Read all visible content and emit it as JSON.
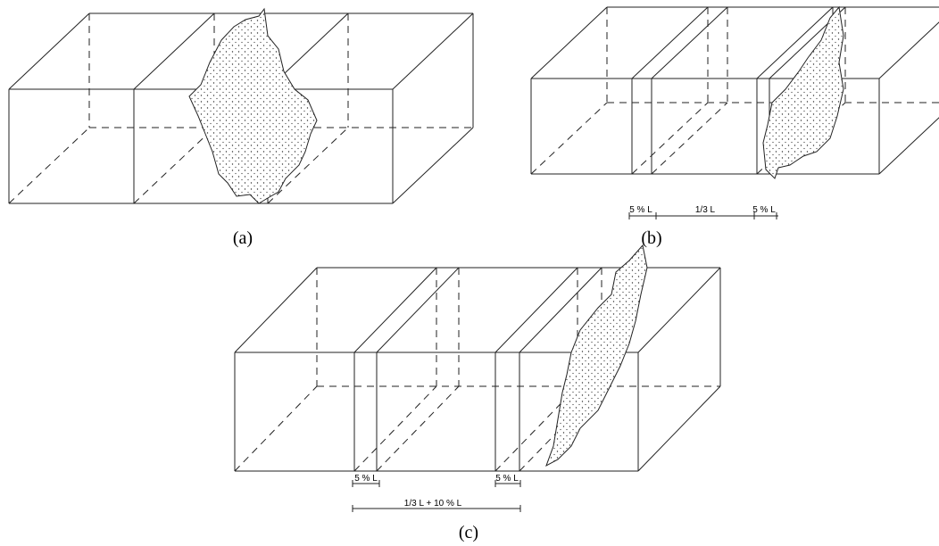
{
  "panels": [
    {
      "caption": "(a)"
    },
    {
      "caption": "(b)",
      "dimensions": [
        "5 % L",
        "1/3 L",
        "5 % L"
      ]
    },
    {
      "caption": "(c)",
      "dimensions": [
        "5 % L",
        "5 % L",
        "1/3 L + 10 % L"
      ]
    }
  ]
}
